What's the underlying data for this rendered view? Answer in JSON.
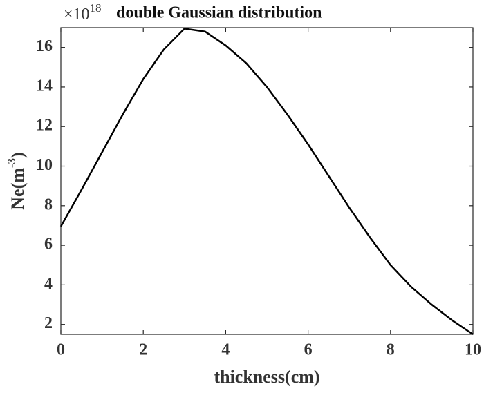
{
  "chart_data": {
    "type": "line",
    "title": "double Gaussian distribution",
    "y_multiplier": {
      "base": "×10",
      "power": "18"
    },
    "xlabel": "thickness(cm)",
    "ylabel": {
      "text": "Ne(m",
      "sup": "-3",
      "end": ")"
    },
    "x": [
      0,
      0.5,
      1,
      1.5,
      2,
      2.5,
      3,
      3.5,
      4,
      4.5,
      5,
      5.5,
      6,
      6.5,
      7,
      7.5,
      8,
      8.5,
      9,
      9.5,
      10
    ],
    "series": [
      {
        "color": "#000000",
        "values": [
          6.95,
          8.8,
          10.7,
          12.6,
          14.4,
          15.9,
          16.95,
          16.8,
          16.1,
          15.2,
          14.0,
          12.6,
          11.1,
          9.5,
          7.9,
          6.4,
          5.0,
          3.9,
          3.0,
          2.2,
          1.5
        ]
      }
    ],
    "xlim": [
      0,
      10
    ],
    "xticks": [
      0,
      2,
      4,
      6,
      8,
      10
    ],
    "ylim": [
      1.5,
      17
    ],
    "yticks": [
      2,
      4,
      6,
      8,
      10,
      12,
      14,
      16
    ],
    "grid": false
  }
}
